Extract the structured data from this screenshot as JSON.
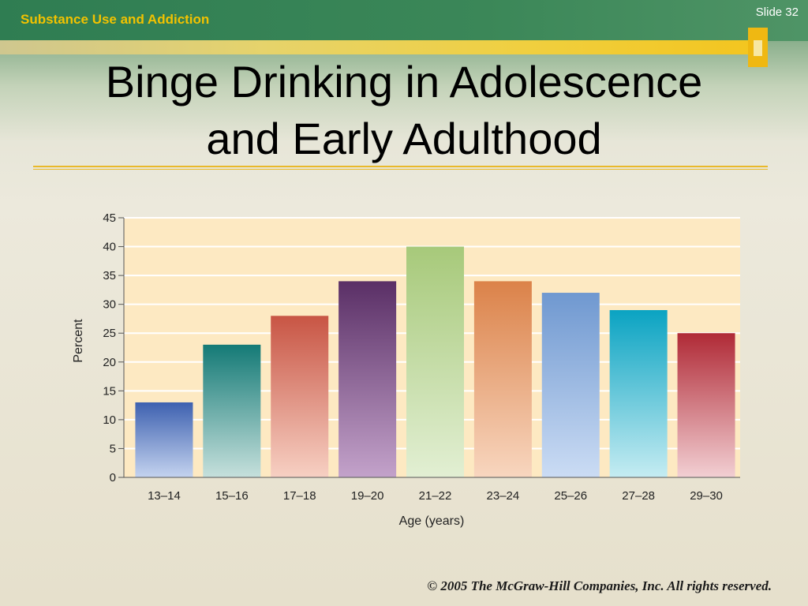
{
  "header": {
    "section_title": "Substance Use and Addiction",
    "slide_number": "Slide 32"
  },
  "slide": {
    "title_line1": "Binge Drinking in Adolescence",
    "title_line2": "and Early Adulthood"
  },
  "footer": {
    "copyright": "© 2005 The McGraw-Hill Companies, Inc. All rights reserved."
  },
  "colors": {
    "header_green": "#2f7d52",
    "header_title": "#f2c200",
    "accent_gold": "#efb812",
    "plot_background": "#fde9c2"
  },
  "chart_data": {
    "type": "bar",
    "categories": [
      "13–14",
      "15–16",
      "17–18",
      "19–20",
      "21–22",
      "23–24",
      "25–26",
      "27–28",
      "29–30"
    ],
    "values": [
      13,
      23,
      28,
      34,
      40,
      34,
      32,
      29,
      25
    ],
    "bar_colors": [
      [
        "#3e61b0",
        "#c4d3ef"
      ],
      [
        "#147a76",
        "#c6e0dc"
      ],
      [
        "#c85544",
        "#f7d0c3"
      ],
      [
        "#5a2f66",
        "#c3a2ca"
      ],
      [
        "#a7c97a",
        "#e2efd3"
      ],
      [
        "#db8249",
        "#f8d6bf"
      ],
      [
        "#6f98d0",
        "#cbdcf4"
      ],
      [
        "#0aa3c2",
        "#c5ecf2"
      ],
      [
        "#b02a36",
        "#f2cfd3"
      ]
    ],
    "xlabel": "Age (years)",
    "ylabel": "Percent",
    "ylim": [
      0,
      45
    ],
    "yticks": [
      0,
      5,
      10,
      15,
      20,
      25,
      30,
      35,
      40,
      45
    ],
    "grid": true
  }
}
